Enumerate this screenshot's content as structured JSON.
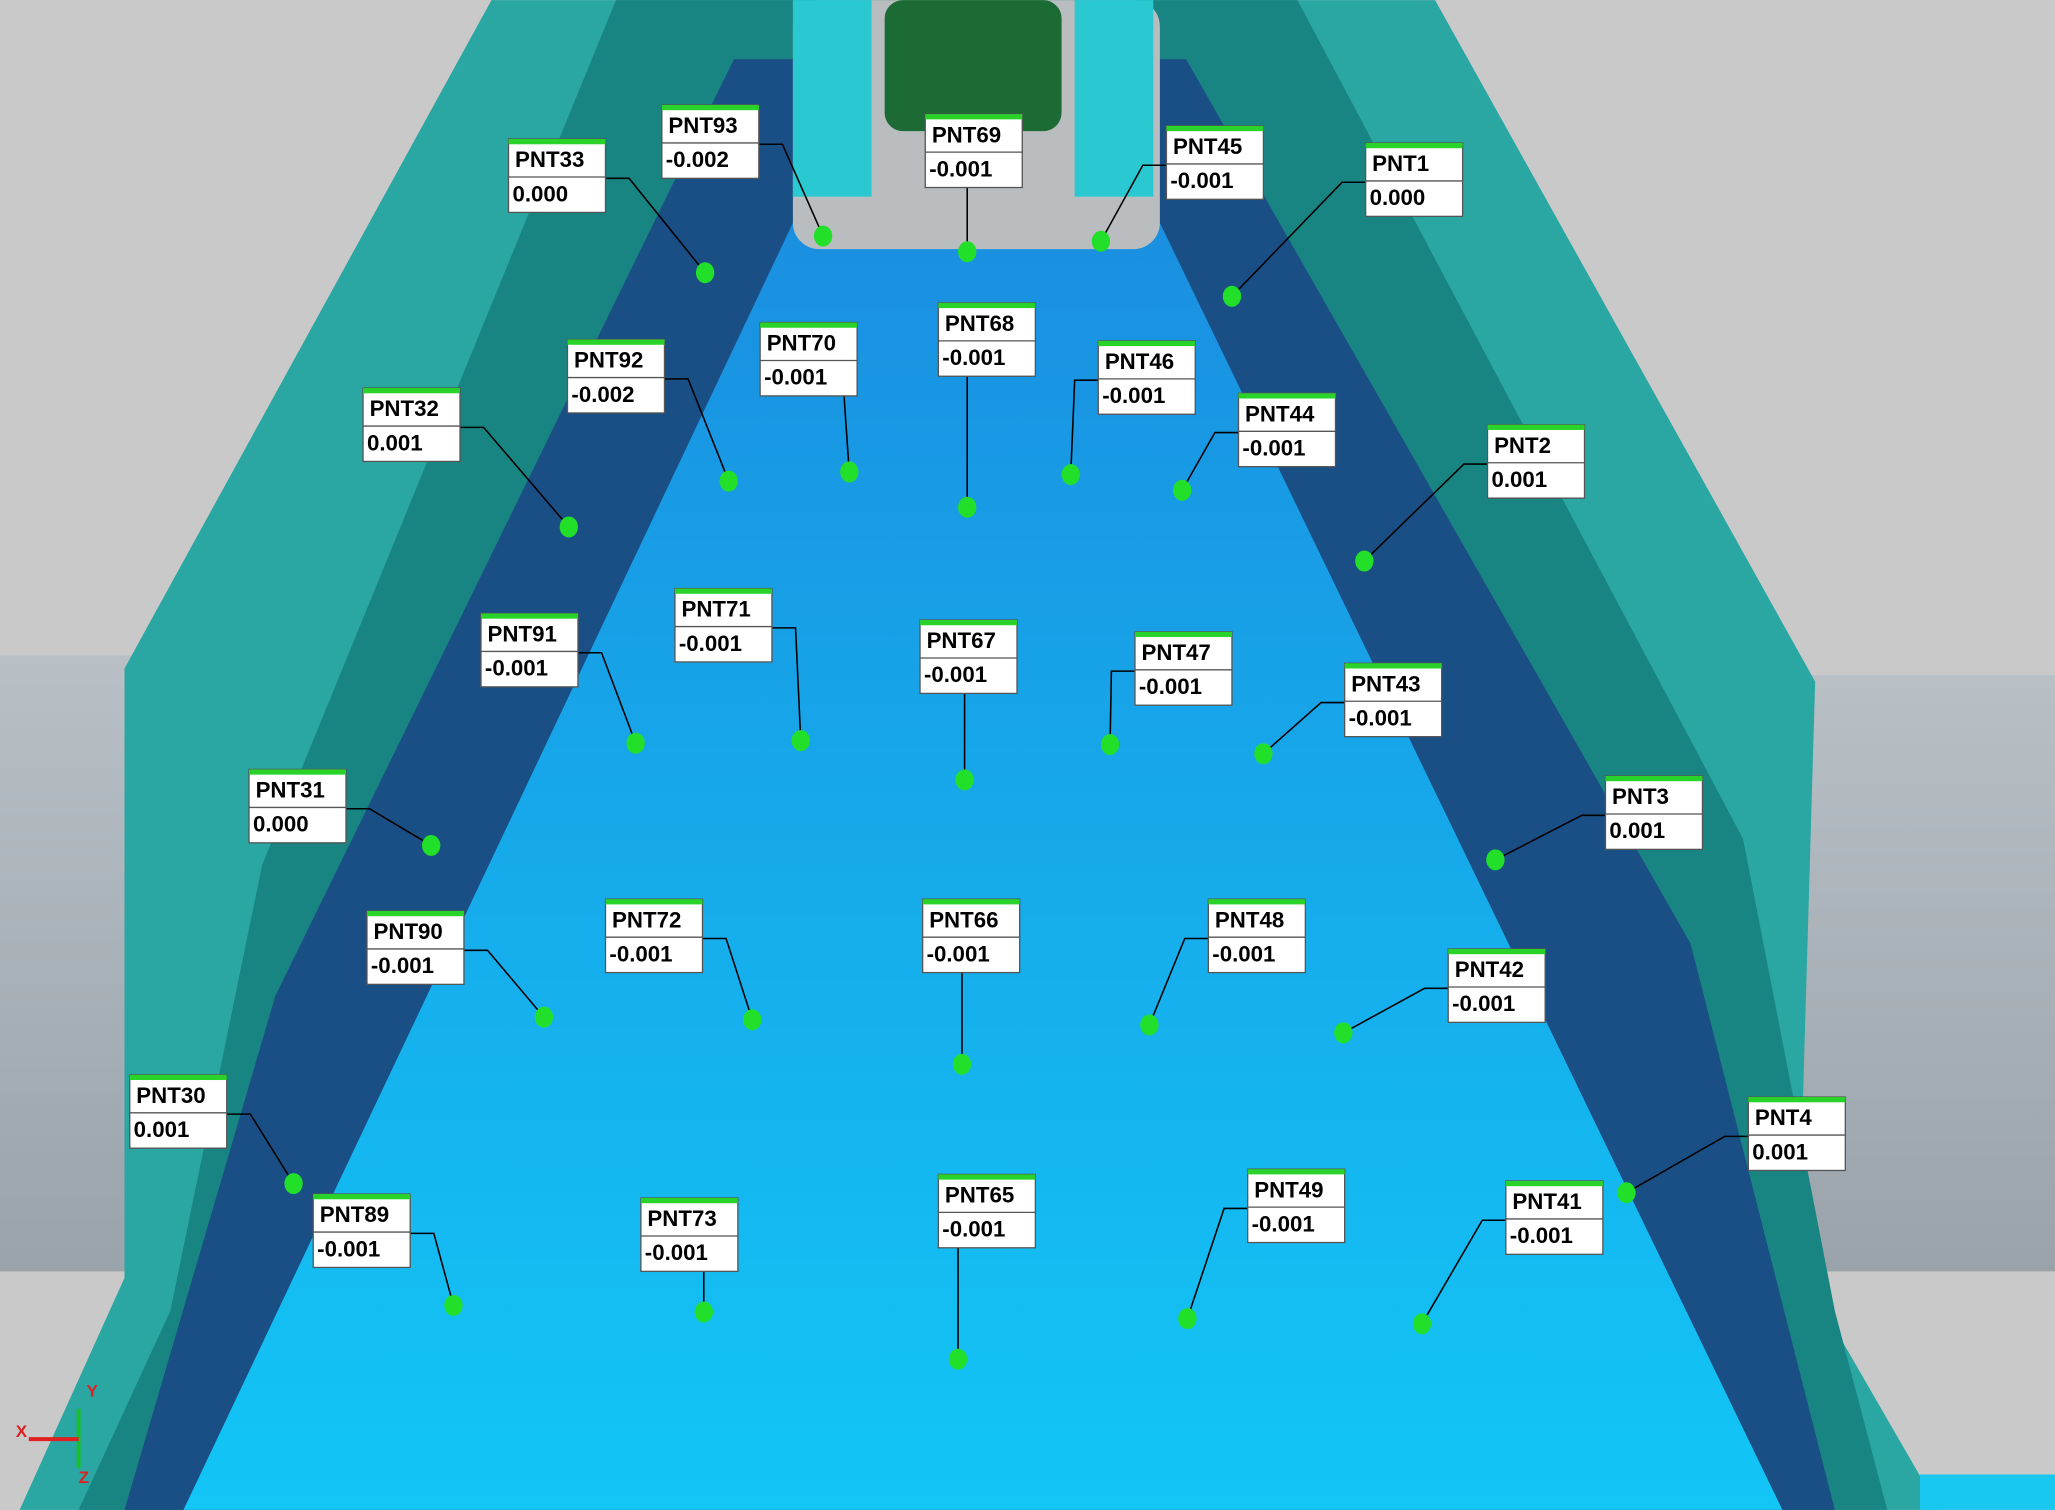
{
  "points": [
    {
      "name": "PNT33",
      "value": "0.000"
    },
    {
      "name": "PNT93",
      "value": "-0.002"
    },
    {
      "name": "PNT69",
      "value": "-0.001"
    },
    {
      "name": "PNT45",
      "value": "-0.001"
    },
    {
      "name": "PNT1",
      "value": "0.000"
    },
    {
      "name": "PNT92",
      "value": "-0.002"
    },
    {
      "name": "PNT70",
      "value": "-0.001"
    },
    {
      "name": "PNT68",
      "value": "-0.001"
    },
    {
      "name": "PNT46",
      "value": "-0.001"
    },
    {
      "name": "PNT44",
      "value": "-0.001"
    },
    {
      "name": "PNT32",
      "value": "0.001"
    },
    {
      "name": "PNT2",
      "value": "0.001"
    },
    {
      "name": "PNT71",
      "value": "-0.001"
    },
    {
      "name": "PNT91",
      "value": "-0.001"
    },
    {
      "name": "PNT67",
      "value": "-0.001"
    },
    {
      "name": "PNT47",
      "value": "-0.001"
    },
    {
      "name": "PNT43",
      "value": "-0.001"
    },
    {
      "name": "PNT31",
      "value": "0.000"
    },
    {
      "name": "PNT3",
      "value": "0.001"
    },
    {
      "name": "PNT90",
      "value": "-0.001"
    },
    {
      "name": "PNT72",
      "value": "-0.001"
    },
    {
      "name": "PNT66",
      "value": "-0.001"
    },
    {
      "name": "PNT48",
      "value": "-0.001"
    },
    {
      "name": "PNT42",
      "value": "-0.001"
    },
    {
      "name": "PNT30",
      "value": "0.001"
    },
    {
      "name": "PNT4",
      "value": "0.001"
    },
    {
      "name": "PNT89",
      "value": "-0.001"
    },
    {
      "name": "PNT73",
      "value": "-0.001"
    },
    {
      "name": "PNT65",
      "value": "-0.001"
    },
    {
      "name": "PNT49",
      "value": "-0.001"
    },
    {
      "name": "PNT41",
      "value": "-0.001"
    }
  ],
  "axes": {
    "x": "X",
    "y": "Y",
    "z": "Z"
  }
}
